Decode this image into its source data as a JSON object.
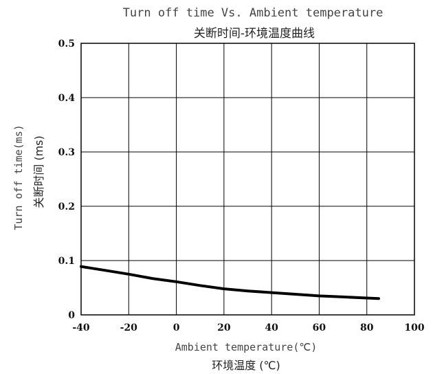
{
  "chart_data": {
    "type": "line",
    "title": "Turn off time Vs. Ambient temperature",
    "subtitle": "关断时间-环境温度曲线",
    "xlabel": "Ambient temperature(℃)",
    "xlabel_cn": "环境温度 (℃)",
    "ylabel": "Turn off time(ms)",
    "ylabel_cn": "关断时间 (ms)",
    "xlim": [
      -40,
      100
    ],
    "ylim": [
      0,
      0.5
    ],
    "x_ticks": [
      "-40",
      "-20",
      "0",
      "20",
      "40",
      "60",
      "80",
      "100"
    ],
    "y_ticks": [
      "0",
      "0.1",
      "0.2",
      "0.3",
      "0.4",
      "0.5"
    ],
    "grid": true,
    "series": [
      {
        "x": [
          -40,
          -30,
          -20,
          -10,
          0,
          10,
          20,
          30,
          40,
          50,
          60,
          70,
          80,
          85
        ],
        "y": [
          0.089,
          0.082,
          0.075,
          0.067,
          0.061,
          0.054,
          0.048,
          0.044,
          0.041,
          0.038,
          0.035,
          0.033,
          0.031,
          0.03
        ],
        "color": "#000000"
      }
    ]
  }
}
